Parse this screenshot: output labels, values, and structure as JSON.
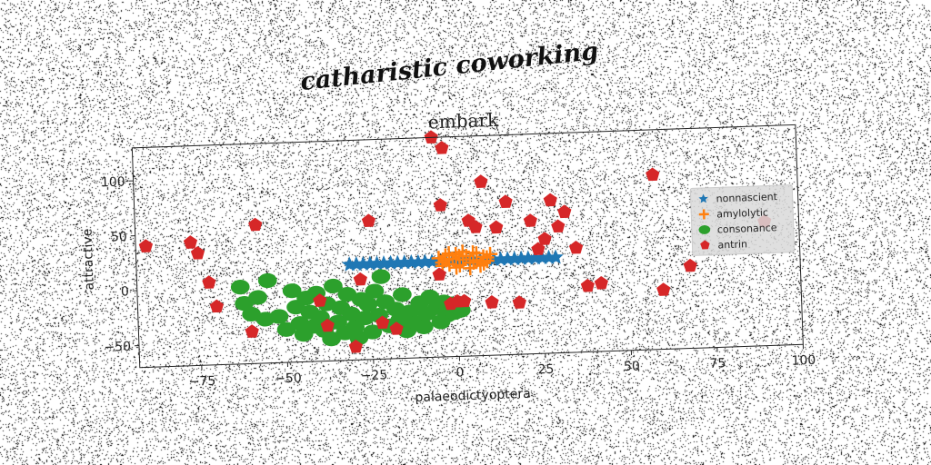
{
  "suptitle": "catharistic coworking",
  "chart_data": {
    "type": "scatter",
    "title": "embark",
    "xlabel": "palaeodictyoptera",
    "ylabel": "attractive",
    "xlim": [
      -93,
      100
    ],
    "ylim": [
      -70,
      130
    ],
    "xticks": [
      -75,
      -50,
      -25,
      0,
      25,
      50,
      75,
      100
    ],
    "yticks": [
      -50,
      0,
      50,
      100
    ],
    "xtick_labels": [
      "−75",
      "−50",
      "−25",
      "0",
      "25",
      "50",
      "75",
      "100"
    ],
    "ytick_labels": [
      "−50",
      "0",
      "50",
      "100"
    ],
    "grid": false,
    "legend_position": "right",
    "series": [
      {
        "name": "nonnascient",
        "marker": "star",
        "color": "#1f77b4",
        "x": [
          -31,
          -29,
          -27,
          -25,
          -23,
          -21,
          -19,
          -17,
          -15,
          -13,
          -11,
          -9,
          -7,
          -5,
          -3,
          -1,
          1,
          3,
          5,
          7,
          9,
          11,
          13,
          15,
          17,
          19,
          21,
          23,
          25,
          27,
          29
        ],
        "y": [
          17,
          17,
          17,
          17,
          17,
          17,
          17,
          17,
          17,
          17,
          17,
          17,
          17,
          17,
          17,
          17,
          17,
          17,
          17,
          17,
          17,
          17,
          17,
          17,
          17,
          17,
          17,
          17,
          17,
          17,
          17
        ]
      },
      {
        "name": "amylolytic",
        "marker": "plus",
        "color": "#ff7f0e",
        "x": [
          -5,
          -4,
          -3,
          -2,
          -1,
          0,
          1,
          2,
          3,
          4,
          5,
          6,
          7,
          8,
          9,
          10,
          -4,
          -2,
          0,
          2,
          4,
          6,
          8,
          -3,
          1,
          5,
          9
        ],
        "y": [
          20,
          16,
          22,
          14,
          19,
          23,
          13,
          18,
          21,
          15,
          24,
          17,
          12,
          20,
          16,
          22,
          13,
          24,
          11,
          25,
          10,
          23,
          14,
          18,
          21,
          15,
          19
        ]
      },
      {
        "name": "consonance",
        "marker": "circle",
        "color": "#2ca02c",
        "x": [
          -63,
          -62,
          -60,
          -58,
          -56,
          -55,
          -52,
          -50,
          -48,
          -47,
          -46,
          -45,
          -44,
          -43,
          -42,
          -41,
          -40,
          -39,
          -38,
          -37,
          -36,
          -35,
          -34,
          -33,
          -32,
          -31,
          -30,
          -29,
          -28,
          -27,
          -26,
          -25,
          -24,
          -23,
          -22,
          -21,
          -20,
          -18,
          -17,
          -16,
          -15,
          -14,
          -12,
          -11,
          -10,
          -9,
          -8,
          -6,
          -5,
          -4,
          -3,
          -2,
          -1,
          0,
          1
        ],
        "y": [
          0,
          -15,
          -25,
          -10,
          -30,
          5,
          -28,
          -40,
          -5,
          -20,
          -35,
          -45,
          -12,
          -25,
          -38,
          -8,
          -30,
          -42,
          -18,
          -50,
          -2,
          -35,
          -22,
          -45,
          -10,
          -28,
          -40,
          -50,
          -15,
          -32,
          -20,
          -45,
          -8,
          -30,
          5,
          -18,
          -40,
          -25,
          -35,
          -12,
          -45,
          -28,
          -38,
          -20,
          -42,
          -30,
          -15,
          -25,
          -38,
          -20,
          -32,
          -22,
          -30,
          -25,
          -28
        ]
      },
      {
        "name": "antrin",
        "marker": "pentagon",
        "color": "#d62728",
        "x": [
          -90,
          -77,
          -75,
          -72,
          -70,
          -60,
          -58,
          -40,
          -38,
          -30,
          -28,
          -25,
          -22,
          -18,
          -6,
          -5,
          -4,
          -3,
          -2,
          0,
          2,
          4,
          6,
          8,
          10,
          12,
          15,
          18,
          22,
          24,
          26,
          28,
          30,
          32,
          35,
          38,
          42,
          58,
          60,
          68,
          90
        ],
        "y": [
          40,
          42,
          32,
          5,
          -17,
          -41,
          56,
          -15,
          -38,
          -58,
          3,
          56,
          -37,
          -43,
          130,
          5,
          68,
          120,
          -22,
          -20,
          -20,
          53,
          47,
          88,
          -22,
          46,
          69,
          -23,
          51,
          25,
          34,
          69,
          45,
          58,
          25,
          -10,
          -8,
          89,
          -16,
          5,
          43
        ]
      }
    ]
  }
}
